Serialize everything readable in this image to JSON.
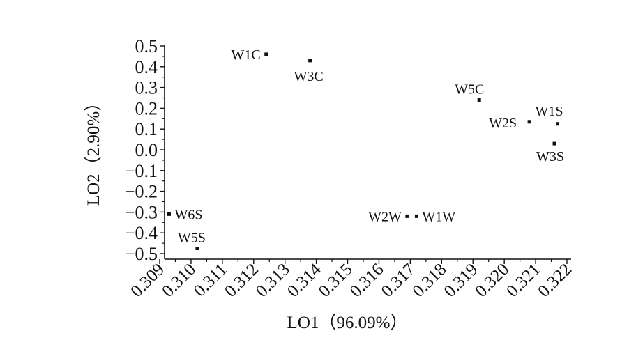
{
  "chart_data": {
    "type": "scatter",
    "title": "",
    "xlabel": "LO1（96.09%）",
    "ylabel": "LO2（2.90%）",
    "xlim": [
      0.309,
      0.322
    ],
    "ylim": [
      -0.5,
      0.5
    ],
    "x_ticks": [
      "0.309",
      "0.310",
      "0.311",
      "0.312",
      "0.313",
      "0.314",
      "0.315",
      "0.316",
      "0.317",
      "0.318",
      "0.319",
      "0.320",
      "0.321",
      "0.322"
    ],
    "y_ticks": [
      "0.5",
      "0.4",
      "0.3",
      "0.2",
      "0.1",
      "0.0",
      "−0.1",
      "−0.2",
      "−0.3",
      "−0.4",
      "−0.5"
    ],
    "grid": false,
    "points": [
      {
        "label": "W1C",
        "x": 0.3124,
        "y": 0.46
      },
      {
        "label": "W3C",
        "x": 0.3138,
        "y": 0.43
      },
      {
        "label": "W5C",
        "x": 0.3192,
        "y": 0.24
      },
      {
        "label": "W2S",
        "x": 0.3208,
        "y": 0.135
      },
      {
        "label": "W1S",
        "x": 0.3217,
        "y": 0.125
      },
      {
        "label": "W3S",
        "x": 0.3216,
        "y": 0.03
      },
      {
        "label": "W2W",
        "x": 0.3169,
        "y": -0.32
      },
      {
        "label": "W1W",
        "x": 0.3172,
        "y": -0.32
      },
      {
        "label": "W6S",
        "x": 0.3093,
        "y": -0.31
      },
      {
        "label": "W5S",
        "x": 0.3102,
        "y": -0.475
      }
    ]
  }
}
